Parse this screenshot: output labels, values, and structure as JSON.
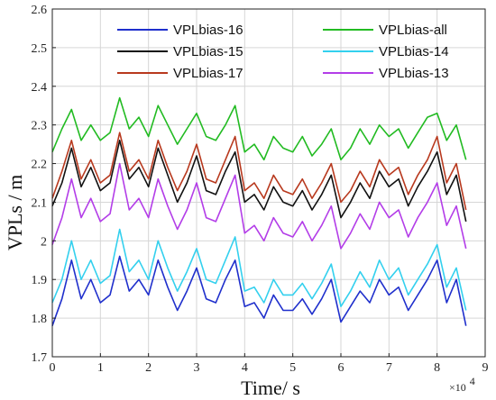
{
  "chart_data": {
    "type": "line",
    "title": "",
    "xlabel": "Time/ s",
    "ylabel": "VPLs / m",
    "x_multiplier_label": "×10",
    "x_multiplier_exp": "4",
    "xlim": [
      0,
      90000
    ],
    "ylim": [
      1.7,
      2.6
    ],
    "grid": true,
    "legend_placement": "top",
    "x_ticks": [
      "0",
      "1",
      "2",
      "3",
      "4",
      "5",
      "6",
      "7",
      "8",
      "9"
    ],
    "y_ticks": [
      "1.7",
      "1.8",
      "1.9",
      "2",
      "2.1",
      "2.2",
      "2.3",
      "2.4",
      "2.5",
      "2.6"
    ],
    "x": [
      0,
      2000,
      4000,
      6000,
      8000,
      10000,
      12000,
      14000,
      16000,
      18000,
      20000,
      22000,
      24000,
      26000,
      28000,
      30000,
      32000,
      34000,
      36000,
      38000,
      40000,
      42000,
      44000,
      46000,
      48000,
      50000,
      52000,
      54000,
      56000,
      58000,
      60000,
      62000,
      64000,
      66000,
      68000,
      70000,
      72000,
      74000,
      76000,
      78000,
      80000,
      82000,
      84000,
      86000
    ],
    "series": [
      {
        "name": "VPLbias-16",
        "color": "#1f2fcc",
        "width": 1.6,
        "values": [
          1.78,
          1.85,
          1.95,
          1.85,
          1.9,
          1.84,
          1.86,
          1.96,
          1.87,
          1.9,
          1.86,
          1.95,
          1.88,
          1.82,
          1.87,
          1.93,
          1.85,
          1.84,
          1.9,
          1.95,
          1.83,
          1.84,
          1.8,
          1.86,
          1.82,
          1.82,
          1.85,
          1.81,
          1.85,
          1.9,
          1.79,
          1.83,
          1.87,
          1.84,
          1.9,
          1.86,
          1.88,
          1.82,
          1.86,
          1.9,
          1.95,
          1.84,
          1.9,
          1.78
        ]
      },
      {
        "name": "VPLbias-15",
        "color": "#111111",
        "width": 1.6,
        "values": [
          2.09,
          2.15,
          2.24,
          2.14,
          2.19,
          2.13,
          2.15,
          2.26,
          2.16,
          2.19,
          2.14,
          2.24,
          2.17,
          2.1,
          2.15,
          2.22,
          2.13,
          2.12,
          2.18,
          2.23,
          2.1,
          2.12,
          2.08,
          2.14,
          2.1,
          2.09,
          2.13,
          2.08,
          2.12,
          2.17,
          2.06,
          2.1,
          2.15,
          2.11,
          2.18,
          2.14,
          2.16,
          2.09,
          2.14,
          2.18,
          2.23,
          2.12,
          2.17,
          2.05
        ]
      },
      {
        "name": "VPLbias-17",
        "color": "#b8391e",
        "width": 1.6,
        "values": [
          2.11,
          2.18,
          2.26,
          2.16,
          2.21,
          2.15,
          2.17,
          2.28,
          2.18,
          2.21,
          2.16,
          2.26,
          2.19,
          2.13,
          2.18,
          2.25,
          2.16,
          2.15,
          2.21,
          2.27,
          2.13,
          2.15,
          2.11,
          2.17,
          2.13,
          2.12,
          2.16,
          2.11,
          2.15,
          2.2,
          2.1,
          2.13,
          2.18,
          2.14,
          2.21,
          2.17,
          2.19,
          2.12,
          2.17,
          2.21,
          2.27,
          2.15,
          2.2,
          2.08
        ]
      },
      {
        "name": "VPLbias-all",
        "color": "#22bb22",
        "width": 1.6,
        "values": [
          2.23,
          2.29,
          2.34,
          2.26,
          2.3,
          2.26,
          2.28,
          2.37,
          2.29,
          2.32,
          2.27,
          2.35,
          2.3,
          2.25,
          2.29,
          2.33,
          2.27,
          2.26,
          2.3,
          2.35,
          2.23,
          2.25,
          2.21,
          2.27,
          2.24,
          2.23,
          2.27,
          2.22,
          2.25,
          2.29,
          2.21,
          2.24,
          2.29,
          2.25,
          2.3,
          2.27,
          2.29,
          2.24,
          2.28,
          2.32,
          2.33,
          2.26,
          2.3,
          2.21
        ]
      },
      {
        "name": "VPLbias-14",
        "color": "#33d0ee",
        "width": 1.6,
        "values": [
          1.84,
          1.9,
          2.0,
          1.9,
          1.95,
          1.89,
          1.91,
          2.03,
          1.92,
          1.95,
          1.9,
          2.0,
          1.93,
          1.87,
          1.92,
          1.98,
          1.9,
          1.89,
          1.95,
          2.01,
          1.87,
          1.88,
          1.84,
          1.9,
          1.86,
          1.86,
          1.89,
          1.85,
          1.89,
          1.94,
          1.83,
          1.87,
          1.92,
          1.88,
          1.95,
          1.9,
          1.93,
          1.86,
          1.9,
          1.94,
          1.99,
          1.88,
          1.93,
          1.82
        ]
      },
      {
        "name": "VPLbias-13",
        "color": "#b33de8",
        "width": 1.6,
        "values": [
          1.99,
          2.06,
          2.16,
          2.06,
          2.11,
          2.05,
          2.07,
          2.2,
          2.08,
          2.11,
          2.06,
          2.16,
          2.09,
          2.03,
          2.08,
          2.15,
          2.06,
          2.05,
          2.11,
          2.17,
          2.02,
          2.04,
          2.0,
          2.06,
          2.02,
          2.01,
          2.05,
          2.0,
          2.04,
          2.09,
          1.98,
          2.02,
          2.07,
          2.03,
          2.1,
          2.06,
          2.08,
          2.01,
          2.06,
          2.1,
          2.15,
          2.04,
          2.09,
          1.98
        ]
      }
    ],
    "legend_order": [
      0,
      1,
      2,
      3,
      4,
      5
    ]
  }
}
